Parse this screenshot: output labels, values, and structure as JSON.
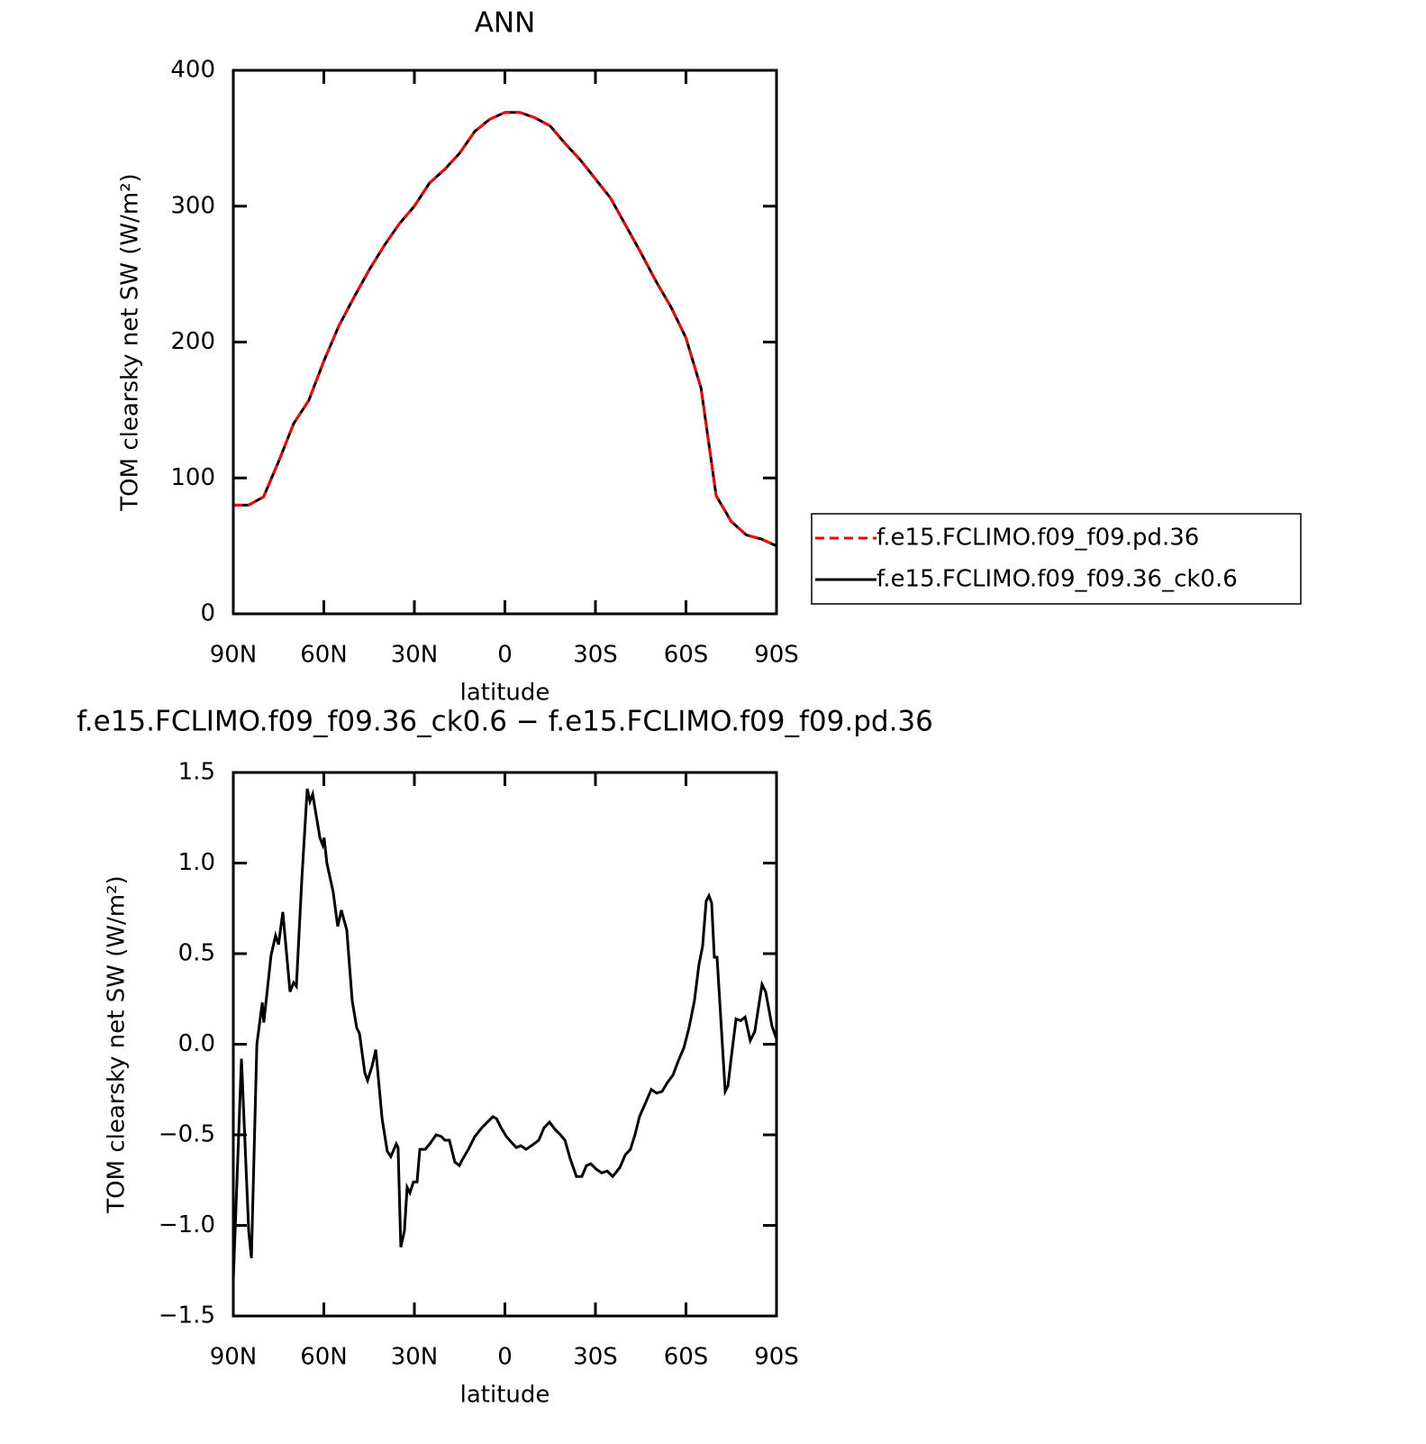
{
  "chart_data": [
    {
      "type": "line",
      "title": "ANN",
      "x_label": "latitude",
      "y_label": "TOM clearsky net SW (W/m²)",
      "x": [
        90,
        85,
        80,
        75,
        70,
        65,
        60,
        55,
        50,
        45,
        40,
        35,
        30,
        25,
        20,
        15,
        10,
        5,
        0,
        -5,
        -10,
        -15,
        -20,
        -25,
        -30,
        -35,
        -40,
        -45,
        -50,
        -55,
        -60,
        -65,
        -70,
        -75,
        -80,
        -85,
        -90
      ],
      "series": [
        {
          "name": "f.e15.FCLIMO.f09_f09.pd.36",
          "color": "#ff0000",
          "linestyle": "dashed",
          "values": [
            80,
            80,
            86,
            112,
            140,
            157,
            186,
            212,
            233,
            253,
            271,
            287,
            300,
            317,
            327,
            339,
            355,
            364,
            369,
            369,
            365,
            359,
            346,
            334,
            320,
            306,
            286,
            266,
            245,
            226,
            203,
            166,
            87,
            68,
            58,
            55,
            50
          ]
        },
        {
          "name": "f.e15.FCLIMO.f09_f09.36_ck0.6",
          "color": "#000000",
          "linestyle": "solid",
          "values": [
            80,
            80,
            86,
            112,
            140,
            157,
            186,
            212,
            233,
            253,
            271,
            287,
            300,
            317,
            327,
            339,
            355,
            364,
            369,
            369,
            365,
            359,
            346,
            334,
            320,
            306,
            286,
            266,
            245,
            226,
            203,
            166,
            87,
            68,
            58,
            55,
            50
          ]
        }
      ],
      "xlim": [
        90,
        -90
      ],
      "xticks": [
        {
          "value": 90,
          "label": "90N"
        },
        {
          "value": 60,
          "label": "60N"
        },
        {
          "value": 30,
          "label": "30N"
        },
        0,
        {
          "value": -30,
          "label": "30S"
        },
        {
          "value": -60,
          "label": "60S"
        },
        {
          "value": -90,
          "label": "90S"
        }
      ],
      "ylim": [
        0,
        400
      ],
      "yticks": [
        0,
        100,
        200,
        300,
        400
      ],
      "legend": "right"
    },
    {
      "type": "line",
      "title": "f.e15.FCLIMO.f09_f09.36_ck0.6 − f.e15.FCLIMO.f09_f09.pd.36",
      "x_label": "latitude",
      "y_label": "TOM clearsky net SW (W/m²)",
      "x": [
        90,
        87.3,
        84.9,
        84,
        82.2,
        80.4,
        79.9,
        77.5,
        76,
        75,
        73.6,
        71.2,
        70,
        69.1,
        67.3,
        65.5,
        64.6,
        63.7,
        61.3,
        60.4,
        59.9,
        59,
        56.9,
        55.4,
        54.2,
        52.4,
        50.6,
        49.1,
        48.2,
        46.4,
        45.5,
        44,
        42.8,
        40.7,
        39,
        37.8,
        36,
        35.4,
        34.5,
        33.3,
        32.4,
        31.5,
        30.3,
        29.1,
        28.2,
        26.4,
        24.9,
        22.8,
        21,
        19.9,
        18.4,
        16.6,
        15.1,
        14.2,
        12.1,
        10,
        7.6,
        5.8,
        4,
        2.8,
        1.3,
        -0.5,
        -2.1,
        -3.8,
        -5.3,
        -7,
        -8.8,
        -11.2,
        -13,
        -14.8,
        -16.6,
        -18.4,
        -19.9,
        -21.6,
        -23.7,
        -25.5,
        -27,
        -28.5,
        -30.3,
        -32.1,
        -33.9,
        -35.7,
        -38.1,
        -39.9,
        -41.6,
        -43.1,
        -44.6,
        -46.7,
        -48.5,
        -50.3,
        -52.1,
        -53.9,
        -55.7,
        -57.5,
        -59.3,
        -61,
        -62.8,
        -64.3,
        -65.5,
        -66.7,
        -67.6,
        -68.5,
        -69.4,
        -70.3,
        -73,
        -73.9,
        -75.1,
        -76.6,
        -78.1,
        -79.6,
        -81.3,
        -82.8,
        -85.2,
        -86.4,
        -88.5,
        -90
      ],
      "series": [
        {
          "color": "#000000",
          "linestyle": "solid",
          "values": [
            -1.3,
            -0.08,
            -1.03,
            -1.18,
            0,
            0.23,
            0.12,
            0.49,
            0.6,
            0.55,
            0.73,
            0.29,
            0.34,
            0.32,
            0.91,
            1.41,
            1.34,
            1.38,
            1.14,
            1.1,
            1.14,
            1,
            0.84,
            0.65,
            0.74,
            0.63,
            0.24,
            0.09,
            0.06,
            -0.16,
            -0.2,
            -0.12,
            -0.03,
            -0.41,
            -0.59,
            -0.62,
            -0.55,
            -0.57,
            -1.12,
            -1.03,
            -0.79,
            -0.82,
            -0.76,
            -0.76,
            -0.58,
            -0.58,
            -0.55,
            -0.5,
            -0.51,
            -0.53,
            -0.53,
            -0.65,
            -0.67,
            -0.64,
            -0.58,
            -0.51,
            -0.46,
            -0.43,
            -0.4,
            -0.41,
            -0.46,
            -0.51,
            -0.54,
            -0.57,
            -0.56,
            -0.58,
            -0.56,
            -0.53,
            -0.46,
            -0.43,
            -0.47,
            -0.5,
            -0.53,
            -0.63,
            -0.73,
            -0.73,
            -0.67,
            -0.66,
            -0.69,
            -0.71,
            -0.7,
            -0.73,
            -0.68,
            -0.61,
            -0.58,
            -0.5,
            -0.4,
            -0.32,
            -0.25,
            -0.27,
            -0.26,
            -0.21,
            -0.17,
            -0.09,
            -0.02,
            0.09,
            0.24,
            0.44,
            0.54,
            0.79,
            0.82,
            0.78,
            0.48,
            0.48,
            -0.26,
            -0.23,
            -0.06,
            0.14,
            0.13,
            0.15,
            0.02,
            0.07,
            0.33,
            0.29,
            0.1,
            0.03
          ]
        }
      ],
      "xlim": [
        90,
        -90
      ],
      "xticks": [
        {
          "value": 90,
          "label": "90N"
        },
        {
          "value": 60,
          "label": "60N"
        },
        {
          "value": 30,
          "label": "30N"
        },
        0,
        {
          "value": -30,
          "label": "30S"
        },
        {
          "value": -60,
          "label": "60S"
        },
        {
          "value": -90,
          "label": "90S"
        }
      ],
      "ylim": [
        -1.5,
        1.5
      ],
      "yticks": [
        {
          "value": -1.5,
          "label": "−1.5"
        },
        {
          "value": -1,
          "label": "−1.0"
        },
        {
          "value": -0.5,
          "label": "−0.5"
        },
        {
          "value": 0,
          "label": "0.0"
        },
        0.5,
        {
          "value": 1,
          "label": "1.0"
        },
        1.5
      ]
    }
  ]
}
